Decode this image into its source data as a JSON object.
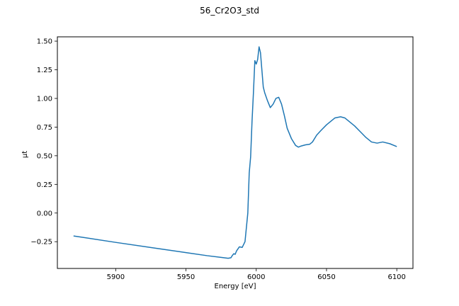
{
  "chart_data": {
    "type": "line",
    "title": "56_Cr2O3_std",
    "xlabel": "Energy [eV]",
    "ylabel": "μt",
    "xlim": [
      5858.5,
      6111.5
    ],
    "ylim": [
      -0.4836,
      1.5375
    ],
    "xticks": [
      5900,
      5950,
      6000,
      6050,
      6100
    ],
    "xtick_labels": [
      "5900",
      "5950",
      "6000",
      "6050",
      "6100"
    ],
    "yticks": [
      -0.25,
      0.0,
      0.25,
      0.5,
      0.75,
      1.0,
      1.25,
      1.5
    ],
    "ytick_labels": [
      "−0.25",
      "0.00",
      "0.25",
      "0.50",
      "0.75",
      "1.00",
      "1.25",
      "1.50"
    ],
    "grid": false,
    "series": [
      {
        "color": "#1f77b4",
        "x": [
          5870,
          5900,
          5930,
          5950,
          5965,
          5975,
          5980,
          5982,
          5983,
          5984,
          5985,
          5986,
          5988,
          5990,
          5992,
          5994,
          5995,
          5996,
          5997,
          5998,
          5999,
          6000,
          6001,
          6002,
          6003,
          6004,
          6005,
          6006,
          6008,
          6010,
          6012,
          6014,
          6016,
          6018,
          6020,
          6022,
          6025,
          6028,
          6030,
          6032,
          6035,
          6038,
          6040,
          6043,
          6046,
          6050,
          6053,
          6056,
          6060,
          6063,
          6066,
          6070,
          6074,
          6078,
          6082,
          6086,
          6090,
          6095,
          6100
        ],
        "y": [
          -0.2,
          -0.256,
          -0.31,
          -0.345,
          -0.372,
          -0.387,
          -0.395,
          -0.39,
          -0.37,
          -0.355,
          -0.36,
          -0.33,
          -0.295,
          -0.3,
          -0.25,
          0.0,
          0.35,
          0.49,
          0.8,
          1.05,
          1.33,
          1.3,
          1.34,
          1.45,
          1.4,
          1.25,
          1.1,
          1.05,
          0.98,
          0.92,
          0.95,
          1.0,
          1.01,
          0.95,
          0.85,
          0.74,
          0.65,
          0.59,
          0.575,
          0.585,
          0.595,
          0.6,
          0.62,
          0.68,
          0.72,
          0.77,
          0.8,
          0.83,
          0.84,
          0.83,
          0.8,
          0.76,
          0.71,
          0.66,
          0.62,
          0.61,
          0.62,
          0.605,
          0.58
        ]
      }
    ]
  }
}
